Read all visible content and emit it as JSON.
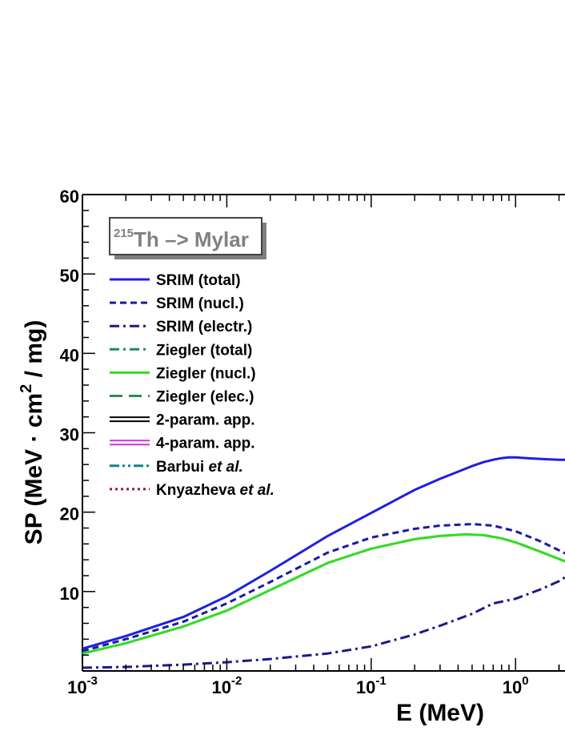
{
  "chart_data": {
    "type": "line",
    "title": "",
    "xlabel": "E (MeV)",
    "ylabel_parts": {
      "pre": "SP (MeV · cm",
      "sup": "2",
      "post": " / mg)"
    },
    "x_scale": "log",
    "xlim": [
      0.001,
      2.2
    ],
    "ylim": [
      0,
      60
    ],
    "x_ticks": [
      {
        "value": 0.001,
        "base": "10",
        "exp": "-3"
      },
      {
        "value": 0.01,
        "base": "10",
        "exp": "-2"
      },
      {
        "value": 0.1,
        "base": "10",
        "exp": "-1"
      },
      {
        "value": 1,
        "base": "10",
        "exp": "0"
      }
    ],
    "y_ticks": [
      10,
      20,
      30,
      40,
      50,
      60
    ],
    "grid": false,
    "legend_placement": "top-left",
    "annotation": {
      "mass_number": "215",
      "text": "Th –> Mylar"
    },
    "series": [
      {
        "name": "SRIM (total)",
        "color": "#1f1fe0",
        "dash": "solid",
        "x": [
          0.001,
          0.002,
          0.005,
          0.01,
          0.02,
          0.05,
          0.1,
          0.2,
          0.3,
          0.4,
          0.5,
          0.6,
          0.7,
          0.8,
          0.9,
          1.0,
          1.2,
          1.5,
          2.0,
          2.2
        ],
        "y": [
          2.8,
          4.4,
          6.8,
          9.4,
          12.6,
          17.0,
          19.9,
          22.8,
          24.2,
          25.1,
          25.8,
          26.3,
          26.6,
          26.8,
          26.9,
          26.9,
          26.8,
          26.7,
          26.6,
          26.6
        ]
      },
      {
        "name": "SRIM (nucl.)",
        "color": "#1a1aa0",
        "dash": "dashed",
        "x": [
          0.001,
          0.002,
          0.005,
          0.01,
          0.02,
          0.05,
          0.1,
          0.2,
          0.3,
          0.5,
          0.7,
          1.0,
          1.5,
          2.0,
          2.2
        ],
        "y": [
          2.5,
          4.0,
          6.2,
          8.5,
          11.2,
          14.9,
          16.8,
          17.9,
          18.3,
          18.5,
          18.3,
          17.6,
          16.3,
          15.2,
          14.8
        ]
      },
      {
        "name": "SRIM (electr.)",
        "color": "#1a1a8c",
        "dash": "dashdot",
        "x": [
          0.001,
          0.002,
          0.005,
          0.01,
          0.02,
          0.05,
          0.1,
          0.2,
          0.3,
          0.5,
          0.7,
          1.0,
          1.5,
          2.0,
          2.2
        ],
        "y": [
          0.4,
          0.5,
          0.8,
          1.1,
          1.5,
          2.2,
          3.1,
          4.6,
          5.7,
          7.2,
          8.5,
          9.1,
          10.3,
          11.3,
          11.8
        ]
      },
      {
        "name": "Ziegler (total)",
        "color": "#17876b",
        "dash": "dashdot",
        "x": [
          0.001,
          0.002,
          0.005,
          0.01,
          0.02,
          0.05,
          0.1,
          0.2,
          0.3,
          0.45,
          0.6,
          0.8,
          1.0,
          1.5,
          2.0,
          2.2
        ],
        "y": [
          2.2,
          3.5,
          5.6,
          7.6,
          10.2,
          13.6,
          15.4,
          16.6,
          17.0,
          17.2,
          17.1,
          16.7,
          16.2,
          15.0,
          14.1,
          13.8
        ]
      },
      {
        "name": "Ziegler (nucl.)",
        "color": "#33dd22",
        "dash": "solid",
        "x": [
          0.001,
          0.002,
          0.005,
          0.01,
          0.02,
          0.05,
          0.1,
          0.2,
          0.3,
          0.45,
          0.6,
          0.8,
          1.0,
          1.5,
          2.0,
          2.2
        ],
        "y": [
          2.2,
          3.5,
          5.6,
          7.6,
          10.2,
          13.6,
          15.4,
          16.6,
          17.0,
          17.2,
          17.1,
          16.7,
          16.2,
          15.0,
          14.1,
          13.8
        ]
      },
      {
        "name": "Ziegler (elec.)",
        "color": "#2e8b57",
        "dash": "longdash",
        "x": [],
        "y": []
      },
      {
        "name": "2-param. app.",
        "color": "#000000",
        "dash": "double",
        "x": [],
        "y": []
      },
      {
        "name": "4-param. app.",
        "color": "#cc33cc",
        "dash": "double",
        "x": [],
        "y": []
      },
      {
        "name_plain": "Barbui ",
        "name_italic": "et al.",
        "color": "#13808a",
        "dash": "dashdotdot",
        "x": [],
        "y": []
      },
      {
        "name_plain": "Knyazheva ",
        "name_italic": "et al.",
        "color": "#8b1a4a",
        "dash": "dotted",
        "x": [],
        "y": []
      }
    ]
  }
}
